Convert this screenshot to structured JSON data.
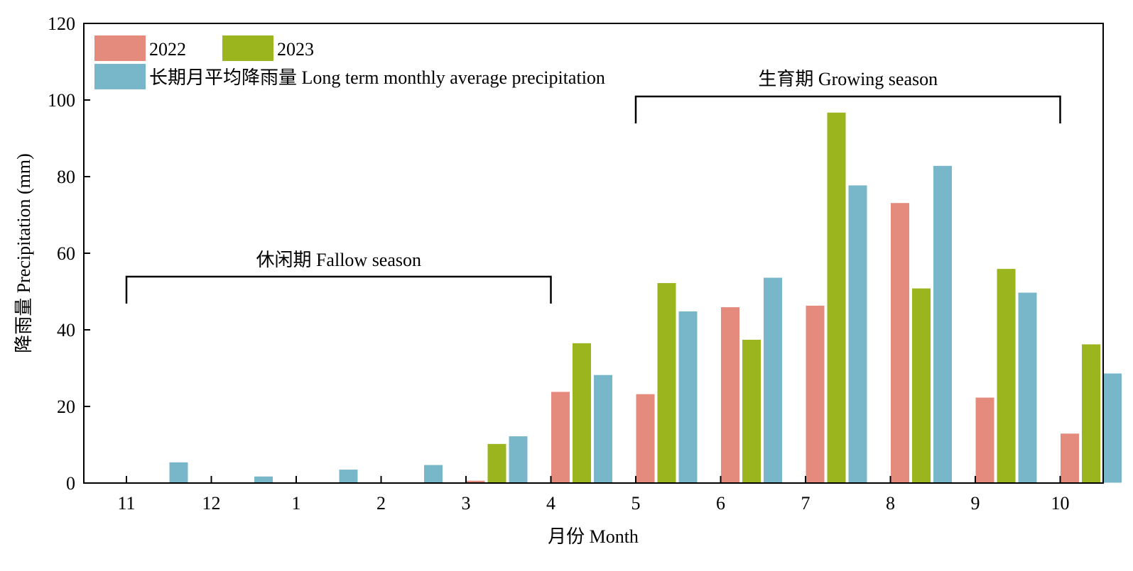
{
  "chart_data": {
    "type": "bar",
    "xlabel": "月份 Month",
    "ylabel": "降雨量 Precipitation (mm)",
    "ylim": [
      0,
      120
    ],
    "yticks": [
      0,
      20,
      40,
      60,
      80,
      100,
      120
    ],
    "categories": [
      "11",
      "12",
      "1",
      "2",
      "3",
      "4",
      "5",
      "6",
      "7",
      "8",
      "9",
      "10"
    ],
    "series": [
      {
        "name": "2022",
        "color": "#E58B7D",
        "values": [
          0,
          0,
          0,
          0,
          0.7,
          23.9,
          23.3,
          46,
          46.4,
          73.2,
          22.4,
          13
        ]
      },
      {
        "name": "2023",
        "color": "#9AB51E",
        "values": [
          0,
          0,
          0,
          0,
          10.3,
          36.6,
          52.3,
          37.5,
          96.8,
          50.9,
          56,
          36.3
        ]
      },
      {
        "name": "长期月平均降雨量 Long term monthly average precipitation",
        "color": "#78B7CA",
        "values": [
          5.5,
          1.8,
          3.6,
          4.8,
          12.3,
          28.3,
          44.9,
          53.7,
          77.8,
          82.9,
          49.8,
          28.7
        ]
      }
    ],
    "legend_position": "top-left",
    "grid": false,
    "annotations": [
      {
        "text": "休闲期 Fallow season",
        "from_category": "11",
        "to_category": "4"
      },
      {
        "text": "生育期 Growing season",
        "from_category": "5",
        "to_category": "10"
      }
    ]
  }
}
